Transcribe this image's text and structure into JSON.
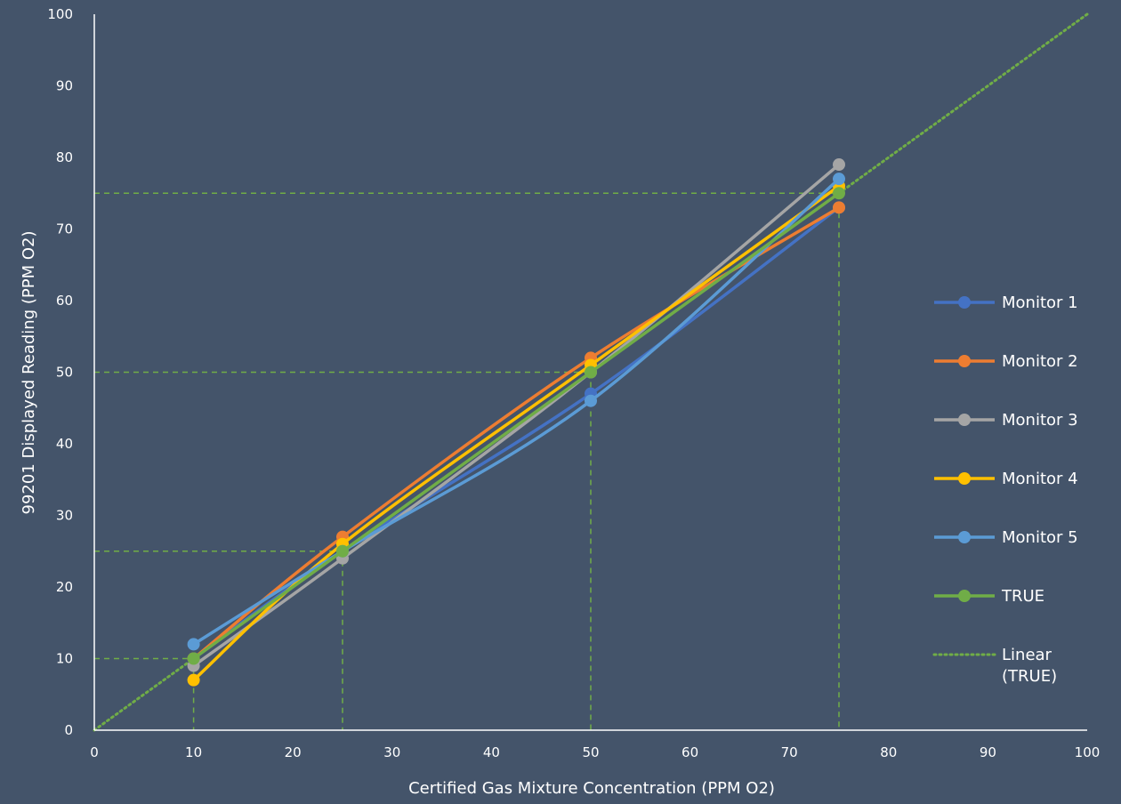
{
  "chart_data": {
    "type": "line",
    "title": "",
    "xlabel": "Certified Gas Mixture Concentration (PPM O2)",
    "ylabel": "99201 Displayed Reading (PPM O2)",
    "xlim": [
      0,
      100
    ],
    "ylim": [
      0,
      100
    ],
    "x_ticks": [
      "0",
      "10",
      "20",
      "30",
      "40",
      "50",
      "60",
      "70",
      "80",
      "90",
      "100"
    ],
    "y_ticks": [
      "0",
      "10",
      "20",
      "30",
      "40",
      "50",
      "60",
      "70",
      "80",
      "90",
      "100"
    ],
    "x": [
      10,
      25,
      50,
      75
    ],
    "grid": false,
    "legend_position": "right",
    "series": [
      {
        "name": "Monitor 1",
        "color": "#4472c4",
        "values": [
          10,
          25,
          47,
          73
        ]
      },
      {
        "name": "Monitor 2",
        "color": "#ed7d31",
        "values": [
          10,
          27,
          52,
          73
        ]
      },
      {
        "name": "Monitor 3",
        "color": "#a5a5a5",
        "values": [
          9,
          24,
          50,
          79
        ]
      },
      {
        "name": "Monitor 4",
        "color": "#ffc000",
        "values": [
          7,
          26,
          51,
          76
        ]
      },
      {
        "name": "Monitor 5",
        "color": "#5b9bd5",
        "values": [
          12,
          25,
          46,
          77
        ]
      },
      {
        "name": "TRUE",
        "color": "#70ad47",
        "values": [
          10,
          25,
          50,
          75
        ]
      }
    ],
    "trendline": {
      "name": "Linear (TRUE)",
      "color": "#70ad47",
      "style": "dotted",
      "from": [
        0,
        0
      ],
      "to": [
        100,
        100
      ]
    },
    "reference_lines": {
      "color": "#70ad47",
      "style": "dashed",
      "points": [
        [
          10,
          10
        ],
        [
          25,
          25
        ],
        [
          50,
          50
        ],
        [
          75,
          75
        ]
      ]
    }
  }
}
